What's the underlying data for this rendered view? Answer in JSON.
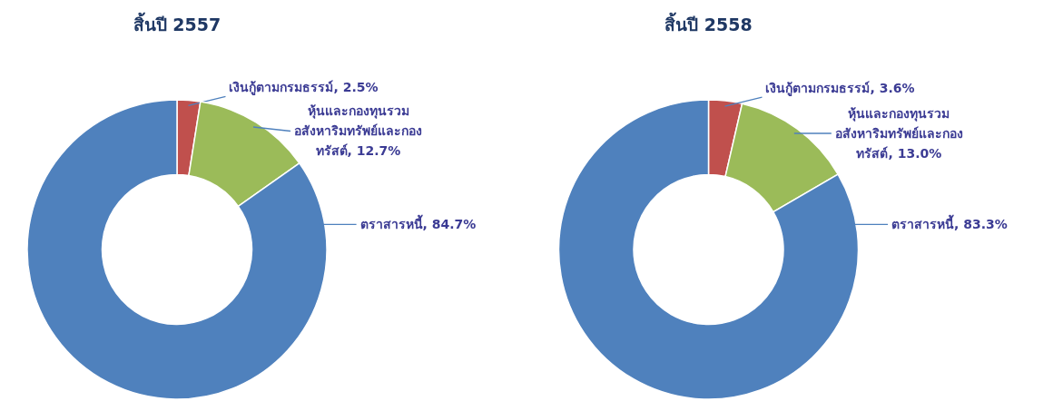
{
  "chart_data": [
    {
      "type": "donut",
      "title": "สิ้นปี 2557",
      "categories": [
        "เงินกู้ตามกรมธรรม์",
        "หุ้นและกองทุนรวมอสังหาริมทรัพย์และกองทรัสต์",
        "ตราสารหนี้"
      ],
      "values": [
        2.5,
        12.7,
        84.7
      ],
      "value_labels": [
        "2.5%",
        "12.7%",
        "84.7%"
      ],
      "colors": [
        "#c0504d",
        "#9bbb59",
        "#4f81bd"
      ]
    },
    {
      "type": "donut",
      "title": "สิ้นปี 2558",
      "categories": [
        "เงินกู้ตามกรมธรรม์",
        "หุ้นและกองทุนรวมอสังหาริมทรัพย์และกองทรัสต์",
        "ตราสารหนี้"
      ],
      "values": [
        3.6,
        13.0,
        83.3
      ],
      "value_labels": [
        "3.6%",
        "13.0%",
        "83.3%"
      ],
      "colors": [
        "#c0504d",
        "#9bbb59",
        "#4f81bd"
      ]
    }
  ]
}
